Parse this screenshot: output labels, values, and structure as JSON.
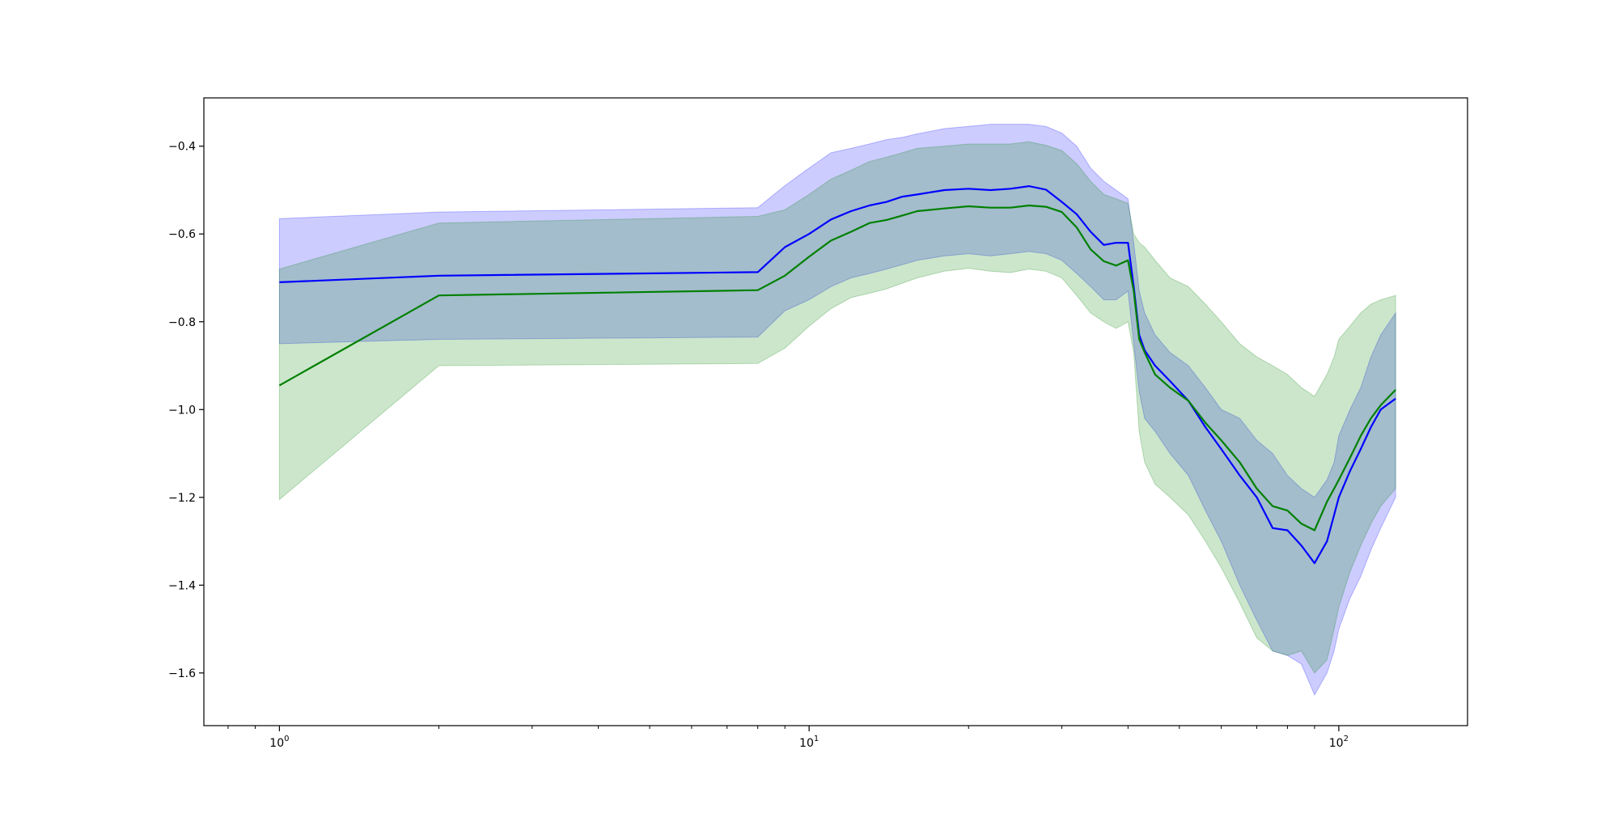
{
  "chart_data": {
    "type": "line",
    "title": "",
    "xlabel": "",
    "ylabel": "",
    "xscale": "log",
    "xlim": [
      0.72,
      175
    ],
    "ylim": [
      -1.72,
      -0.29
    ],
    "grid": false,
    "legend": "none",
    "x_tick_labels": [
      {
        "value": 1,
        "base": "10",
        "exp": "0"
      },
      {
        "value": 10,
        "base": "10",
        "exp": "1"
      },
      {
        "value": 100,
        "base": "10",
        "exp": "2"
      }
    ],
    "y_ticks": [
      -0.4,
      -0.6,
      -0.8,
      -1.0,
      -1.2,
      -1.4,
      -1.6
    ],
    "y_tick_labels": [
      "−0.4",
      "−0.6",
      "−0.8",
      "−1.0",
      "−1.2",
      "−1.4",
      "−1.6"
    ],
    "x": [
      1,
      2,
      8,
      9,
      10,
      11,
      12,
      13,
      14,
      15,
      16,
      18,
      20,
      22,
      24,
      26,
      28,
      30,
      32,
      34,
      36,
      38,
      40,
      41,
      42,
      43,
      45,
      48,
      52,
      56,
      60,
      65,
      70,
      75,
      80,
      85,
      90,
      95,
      98,
      100,
      105,
      110,
      115,
      120,
      128
    ],
    "series": [
      {
        "color": "#0000ff",
        "values": [
          -0.71,
          -0.695,
          -0.687,
          -0.63,
          -0.6,
          -0.567,
          -0.548,
          -0.535,
          -0.527,
          -0.515,
          -0.51,
          -0.5,
          -0.497,
          -0.5,
          -0.497,
          -0.491,
          -0.499,
          -0.527,
          -0.555,
          -0.595,
          -0.625,
          -0.62,
          -0.62,
          -0.72,
          -0.83,
          -0.865,
          -0.9,
          -0.935,
          -0.98,
          -1.04,
          -1.09,
          -1.15,
          -1.2,
          -1.27,
          -1.275,
          -1.31,
          -1.35,
          -1.3,
          -1.24,
          -1.2,
          -1.14,
          -1.09,
          -1.04,
          -1.0,
          -0.975
        ],
        "band": {
          "fill": "#0000ff",
          "opacity": 0.2,
          "upper": [
            -0.565,
            -0.55,
            -0.54,
            -0.49,
            -0.45,
            -0.415,
            -0.405,
            -0.395,
            -0.385,
            -0.38,
            -0.372,
            -0.36,
            -0.355,
            -0.35,
            -0.35,
            -0.35,
            -0.355,
            -0.37,
            -0.4,
            -0.45,
            -0.48,
            -0.5,
            -0.52,
            -0.62,
            -0.73,
            -0.78,
            -0.83,
            -0.87,
            -0.9,
            -0.95,
            -1.0,
            -1.02,
            -1.07,
            -1.1,
            -1.15,
            -1.18,
            -1.2,
            -1.16,
            -1.12,
            -1.06,
            -1.0,
            -0.95,
            -0.88,
            -0.83,
            -0.78
          ],
          "lower": [
            -0.85,
            -0.84,
            -0.835,
            -0.775,
            -0.75,
            -0.72,
            -0.7,
            -0.69,
            -0.68,
            -0.67,
            -0.66,
            -0.65,
            -0.645,
            -0.65,
            -0.645,
            -0.64,
            -0.645,
            -0.66,
            -0.69,
            -0.72,
            -0.75,
            -0.75,
            -0.73,
            -0.85,
            -0.96,
            -1.02,
            -1.05,
            -1.1,
            -1.15,
            -1.23,
            -1.3,
            -1.4,
            -1.48,
            -1.55,
            -1.56,
            -1.58,
            -1.65,
            -1.6,
            -1.55,
            -1.5,
            -1.43,
            -1.38,
            -1.32,
            -1.27,
            -1.2
          ]
        }
      },
      {
        "color": "#008000",
        "values": [
          -0.945,
          -0.74,
          -0.728,
          -0.695,
          -0.652,
          -0.615,
          -0.595,
          -0.575,
          -0.568,
          -0.558,
          -0.548,
          -0.542,
          -0.537,
          -0.54,
          -0.54,
          -0.535,
          -0.538,
          -0.55,
          -0.585,
          -0.635,
          -0.662,
          -0.672,
          -0.66,
          -0.73,
          -0.84,
          -0.87,
          -0.92,
          -0.95,
          -0.98,
          -1.03,
          -1.07,
          -1.12,
          -1.18,
          -1.22,
          -1.23,
          -1.26,
          -1.275,
          -1.21,
          -1.18,
          -1.16,
          -1.11,
          -1.06,
          -1.02,
          -0.99,
          -0.955
        ],
        "band": {
          "fill": "#008000",
          "opacity": 0.2,
          "upper": [
            -0.68,
            -0.575,
            -0.56,
            -0.545,
            -0.51,
            -0.475,
            -0.455,
            -0.435,
            -0.425,
            -0.415,
            -0.405,
            -0.4,
            -0.395,
            -0.395,
            -0.395,
            -0.39,
            -0.398,
            -0.41,
            -0.44,
            -0.48,
            -0.51,
            -0.52,
            -0.53,
            -0.6,
            -0.62,
            -0.63,
            -0.66,
            -0.7,
            -0.72,
            -0.76,
            -0.8,
            -0.85,
            -0.88,
            -0.9,
            -0.92,
            -0.95,
            -0.97,
            -0.92,
            -0.88,
            -0.84,
            -0.81,
            -0.78,
            -0.76,
            -0.75,
            -0.74
          ],
          "lower": [
            -1.205,
            -0.9,
            -0.895,
            -0.86,
            -0.81,
            -0.77,
            -0.745,
            -0.735,
            -0.725,
            -0.712,
            -0.7,
            -0.685,
            -0.678,
            -0.685,
            -0.688,
            -0.68,
            -0.685,
            -0.7,
            -0.74,
            -0.78,
            -0.8,
            -0.815,
            -0.8,
            -0.87,
            -1.05,
            -1.12,
            -1.17,
            -1.2,
            -1.24,
            -1.3,
            -1.36,
            -1.44,
            -1.52,
            -1.55,
            -1.56,
            -1.55,
            -1.6,
            -1.57,
            -1.5,
            -1.45,
            -1.37,
            -1.31,
            -1.26,
            -1.22,
            -1.18
          ]
        }
      }
    ]
  }
}
